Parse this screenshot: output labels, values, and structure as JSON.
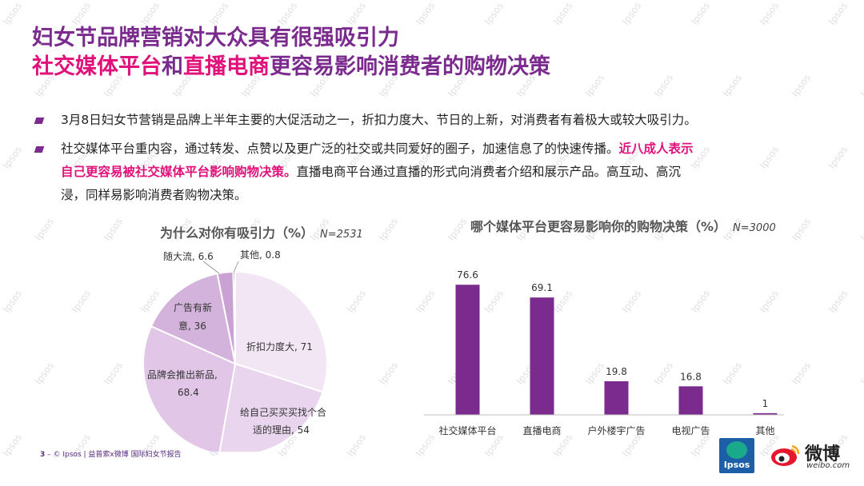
{
  "title": {
    "line1": "妇女节品牌营销对大众具有很强吸引力",
    "line2_a": "社交媒体平台",
    "line2_b": "和",
    "line2_c": "直播电商",
    "line2_d": "更容易影响消费者的购物决策"
  },
  "bullets": [
    {
      "text": "3月8日妇女节营销是品牌上半年主要的大促活动之一，折扣力度大、节日的上新，对消费者有着极大或较大吸引力。"
    },
    {
      "text_a": "社交媒体平台重内容，通过转发、点赞以及更广泛的社交或共同爱好的圈子，加速信息了的快速传播。",
      "highlight_a": "近八成人表示",
      "highlight_b": "自己更容易被社交媒体平台影响购物决策。",
      "text_b": "直播电商平台通过直播的形式向消费者介绍和展示产品。高互动、高沉",
      "text_c": "浸，同样易影响消费者购物决策。"
    }
  ],
  "colors": {
    "title": "#7b2a8e",
    "highlight": "#e0117a",
    "bar": "#7b2a8e"
  },
  "chart_data": [
    {
      "type": "pie",
      "title": "为什么对你有吸引力（%）",
      "sample": "N=2531",
      "slices": [
        {
          "label": "折扣力度大",
          "value": 71,
          "color": "#f2e6f4"
        },
        {
          "label": "给自己买买买找个合适的理由",
          "value": 54,
          "color": "#e9d6ee"
        },
        {
          "label": "品牌会推出新品",
          "value": 68.4,
          "color": "#e1c6e7"
        },
        {
          "label": "广告有新意",
          "value": 36,
          "color": "#d3b2dc"
        },
        {
          "label": "随大流",
          "value": 6.6,
          "color": "#c9a2d3"
        },
        {
          "label": "其他",
          "value": 0.8,
          "color": "#9a6aab"
        }
      ],
      "labels_text": {
        "zk": "折扣力度大, 71",
        "gz1": "给自己买买买找个合",
        "gz2": "适的理由, 54",
        "pp1": "品牌会推出新品,",
        "pp2": "68.4",
        "gg1": "广告有新",
        "gg2": "意, 36",
        "sdl": "随大流, 6.6",
        "qt": "其他, 0.8"
      }
    },
    {
      "type": "bar",
      "title": "哪个媒体平台更容易影响你的购物决策（%）",
      "sample": "N=3000",
      "categories": [
        "社交媒体平台",
        "直播电商",
        "户外楼宇广告",
        "电视广告",
        "其他"
      ],
      "values": [
        76.6,
        69.1,
        19.8,
        16.8,
        1
      ],
      "value_labels": [
        "76.6",
        "69.1",
        "19.8",
        "16.8",
        "1"
      ],
      "ylim": [
        0,
        80
      ]
    }
  ],
  "footer": {
    "page": "3",
    "dash": "–",
    "text": "© Ipsos | 益普索x微博 国际妇女节报告"
  },
  "logos": {
    "ipsos": "Ipsos",
    "weibo": "微博",
    "weibo_url": "weibo.com"
  }
}
